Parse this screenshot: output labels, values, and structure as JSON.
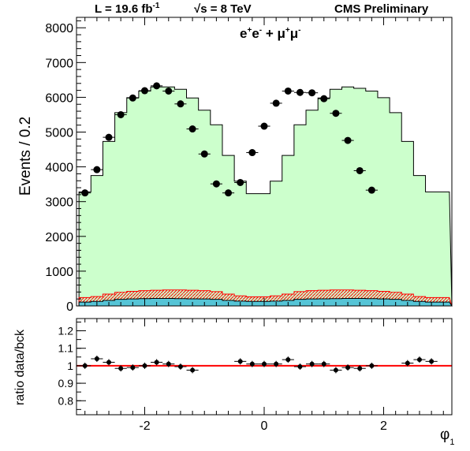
{
  "header": {
    "lumi_text": "L = 19.6 fb",
    "lumi_sup": "-1",
    "energy_text": "s = 8 TeV",
    "energy_sqrt": "√",
    "cms_label": "CMS Preliminary"
  },
  "chart_data": {
    "type": "histogram",
    "channel_label": {
      "e1": "e",
      "e1_sup": "+",
      "e2": "e",
      "e2_sup": "-",
      "plus": " + ",
      "m1": "μ",
      "m1_sup": "+",
      "m2": "μ",
      "m2_sup": "-"
    },
    "xlabel": "φ",
    "xlabel_sub": "1",
    "xlim": [
      -3.1416,
      3.1416
    ],
    "x_ticks": [
      "-2",
      "0",
      "2"
    ],
    "bin_width": 0.2,
    "bin_centers": [
      -3.0,
      -2.8,
      -2.6,
      -2.4,
      -2.2,
      -2.0,
      -1.8,
      -1.6,
      -1.4,
      -1.2,
      -1.0,
      -0.8,
      -0.6,
      -0.4,
      -0.2,
      0.0,
      0.2,
      0.4,
      0.6,
      0.8,
      1.0,
      1.2,
      1.4,
      1.6,
      1.8,
      2.0,
      2.2,
      2.4,
      2.6,
      2.8,
      3.0
    ],
    "top_panel": {
      "ylabel": "Events / 0.2",
      "ylim": [
        0,
        8300
      ],
      "y_ticks": [
        "0",
        "1000",
        "2000",
        "3000",
        "4000",
        "5000",
        "6000",
        "7000",
        "8000"
      ],
      "mc_total": [
        3280,
        3750,
        4730,
        5560,
        5990,
        6180,
        6300,
        6300,
        6230,
        5980,
        5630,
        5210,
        4330,
        3590,
        3230,
        3230,
        3590,
        4330,
        5210,
        5630,
        5980,
        6230,
        6300,
        6260,
        6180,
        5990,
        5560,
        4730,
        3750,
        3280,
        3280
      ],
      "background_hatched": [
        240,
        270,
        340,
        390,
        420,
        440,
        450,
        460,
        460,
        450,
        440,
        410,
        340,
        290,
        260,
        260,
        290,
        340,
        410,
        440,
        450,
        460,
        460,
        450,
        440,
        420,
        390,
        340,
        270,
        240,
        240
      ],
      "background_cyan": [
        110,
        130,
        160,
        190,
        200,
        210,
        215,
        215,
        210,
        205,
        200,
        190,
        160,
        140,
        130,
        130,
        140,
        160,
        190,
        200,
        205,
        210,
        215,
        215,
        210,
        200,
        190,
        160,
        130,
        110,
        110
      ],
      "data": [
        3250,
        3920,
        4850,
        5500,
        5980,
        6190,
        6330,
        6180,
        5810,
        5090,
        4370,
        3510,
        3250,
        3550,
        4410,
        5170,
        5830,
        6180,
        6140,
        6130,
        5960,
        5540,
        4760,
        3890,
        3330
      ],
      "data_x": [
        -3.0,
        -2.8,
        -2.6,
        -2.4,
        -2.2,
        -2.0,
        -1.8,
        -1.6,
        -1.4,
        -1.2,
        -1.0,
        -0.8,
        -0.6,
        -0.4,
        -0.2,
        0.0,
        0.2,
        0.4,
        0.6,
        0.8,
        1.0,
        1.2,
        1.4,
        1.6,
        1.8
      ]
    },
    "bottom_panel": {
      "ylabel": "ratio data/bck",
      "ylim": [
        0.72,
        1.27
      ],
      "y_ticks": [
        "0.8",
        "0.9",
        "1",
        "1.1",
        "1.2"
      ],
      "reference_line": 1.0,
      "ratio": [
        1.0,
        1.04,
        1.02,
        0.985,
        0.99,
        1.0,
        1.02,
        1.01,
        0.995,
        0.975,
        1.025,
        1.01,
        1.01,
        1.01,
        1.035,
        0.995,
        1.01,
        1.01,
        0.975,
        0.99,
        0.985,
        1.0,
        1.015,
        1.035,
        1.025
      ],
      "ratio_x": [
        -3.0,
        -2.8,
        -2.6,
        -2.4,
        -2.2,
        -2.0,
        -1.8,
        -1.6,
        -1.4,
        -1.2,
        -0.4,
        -0.2,
        0.0,
        0.2,
        0.4,
        0.6,
        0.8,
        1.0,
        1.2,
        1.4,
        1.6,
        1.8,
        2.4,
        2.6,
        2.8
      ]
    },
    "colors": {
      "mc_fill": "#ccffcc",
      "hatch": "#ff0000",
      "cyan": "#55c4d6",
      "data": "#000000",
      "reference": "#ff0000"
    }
  }
}
